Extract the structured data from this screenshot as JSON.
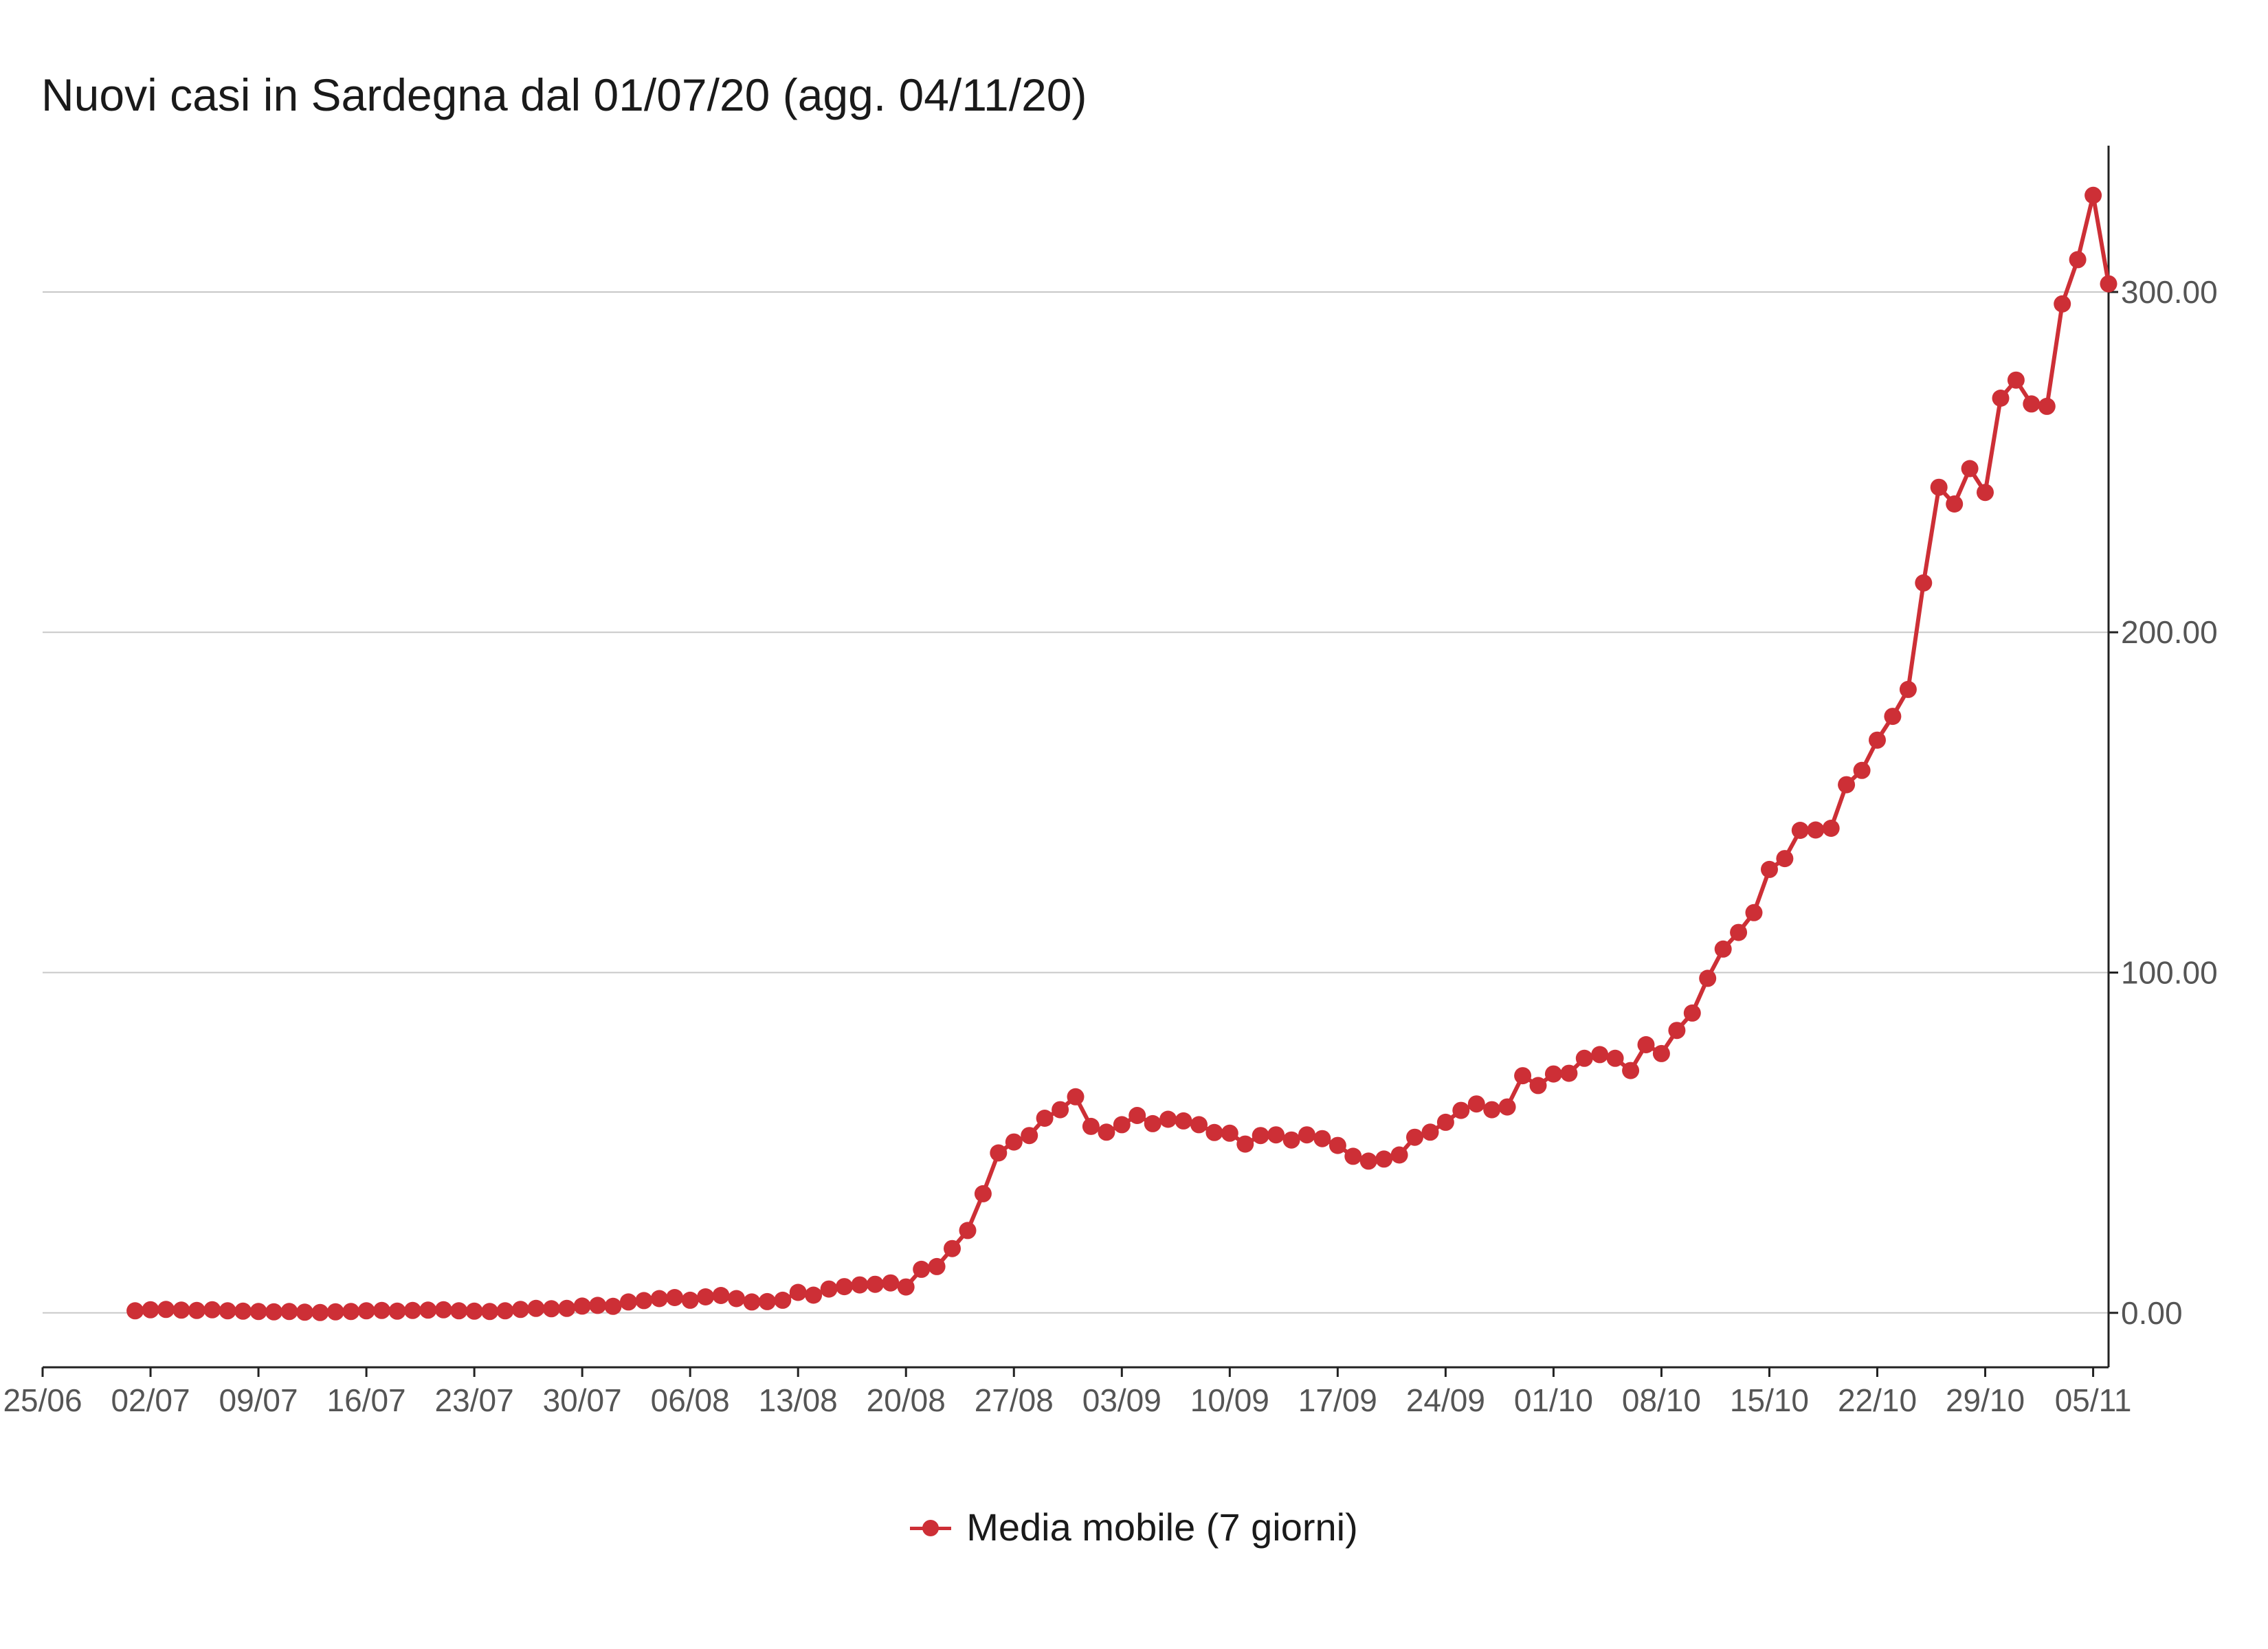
{
  "colors": {
    "series": "#cd2f36",
    "grid": "#c8c8c8",
    "axis": "#222222",
    "ticks": "#555555"
  },
  "chart_data": {
    "type": "line",
    "title": "Nuovi casi in Sardegna dal 01/07/20 (agg. 04/11/20)",
    "xlabel": "",
    "ylabel": "",
    "x_start": "2020-07-01",
    "x_end": "2020-11-04",
    "xlim": [
      "2020-06-25",
      "2020-11-06"
    ],
    "ylim": [
      -16,
      343
    ],
    "grid": "horizontal",
    "y_axis_side": "right",
    "legend_position": "bottom",
    "x_ticks": [
      {
        "date": "2020-06-25",
        "label": "25/06"
      },
      {
        "date": "2020-07-02",
        "label": "02/07"
      },
      {
        "date": "2020-07-09",
        "label": "09/07"
      },
      {
        "date": "2020-07-16",
        "label": "16/07"
      },
      {
        "date": "2020-07-23",
        "label": "23/07"
      },
      {
        "date": "2020-07-30",
        "label": "30/07"
      },
      {
        "date": "2020-08-06",
        "label": "06/08"
      },
      {
        "date": "2020-08-13",
        "label": "13/08"
      },
      {
        "date": "2020-08-20",
        "label": "20/08"
      },
      {
        "date": "2020-08-27",
        "label": "27/08"
      },
      {
        "date": "2020-09-03",
        "label": "03/09"
      },
      {
        "date": "2020-09-10",
        "label": "10/09"
      },
      {
        "date": "2020-09-17",
        "label": "17/09"
      },
      {
        "date": "2020-09-24",
        "label": "24/09"
      },
      {
        "date": "2020-10-01",
        "label": "01/10"
      },
      {
        "date": "2020-10-08",
        "label": "08/10"
      },
      {
        "date": "2020-10-15",
        "label": "15/10"
      },
      {
        "date": "2020-10-22",
        "label": "22/10"
      },
      {
        "date": "2020-10-29",
        "label": "29/10"
      },
      {
        "date": "2020-11-05",
        "label": "05/11"
      }
    ],
    "y_ticks": [
      {
        "value": 0,
        "label": "0.00"
      },
      {
        "value": 100,
        "label": "100.00"
      },
      {
        "value": 200,
        "label": "200.00"
      },
      {
        "value": 300,
        "label": "300.00"
      }
    ],
    "series": [
      {
        "name": "Media mobile (7 giorni)",
        "values": [
          0.6,
          0.9,
          1.0,
          0.8,
          0.7,
          0.9,
          0.6,
          0.5,
          0.4,
          0.3,
          0.4,
          0.2,
          0.1,
          0.3,
          0.4,
          0.6,
          0.7,
          0.5,
          0.7,
          0.8,
          0.9,
          0.6,
          0.5,
          0.4,
          0.6,
          1.0,
          1.3,
          1.2,
          1.3,
          2.0,
          2.2,
          1.9,
          3.2,
          3.6,
          4.2,
          4.5,
          3.7,
          4.7,
          5.1,
          4.2,
          3.2,
          3.3,
          3.7,
          6.0,
          5.2,
          7.0,
          7.7,
          8.2,
          8.4,
          8.8,
          7.6,
          12.8,
          13.6,
          18.9,
          24.2,
          35.0,
          47.0,
          50.2,
          52.1,
          57.2,
          59.7,
          63.5,
          54.8,
          53.1,
          55.3,
          58.0,
          55.6,
          56.9,
          56.4,
          55.3,
          53.0,
          52.8,
          49.6,
          52.1,
          52.3,
          50.8,
          52.3,
          51.2,
          49.2,
          46.0,
          44.6,
          45.2,
          46.4,
          51.6,
          53.1,
          56.0,
          59.5,
          61.4,
          59.7,
          60.5,
          69.7,
          66.8,
          70.2,
          70.4,
          74.8,
          75.9,
          74.8,
          71.2,
          78.8,
          76.2,
          83.0,
          88.1,
          98.3,
          106.9,
          111.8,
          117.6,
          130.3,
          133.5,
          141.8,
          141.9,
          142.4,
          155.2,
          159.4,
          168.3,
          175.3,
          183.2,
          214.5,
          242.6,
          237.7,
          248.1,
          241.1,
          268.8,
          274.1,
          267.1,
          266.4,
          296.5,
          309.5,
          328.4,
          302.4
        ]
      }
    ]
  }
}
